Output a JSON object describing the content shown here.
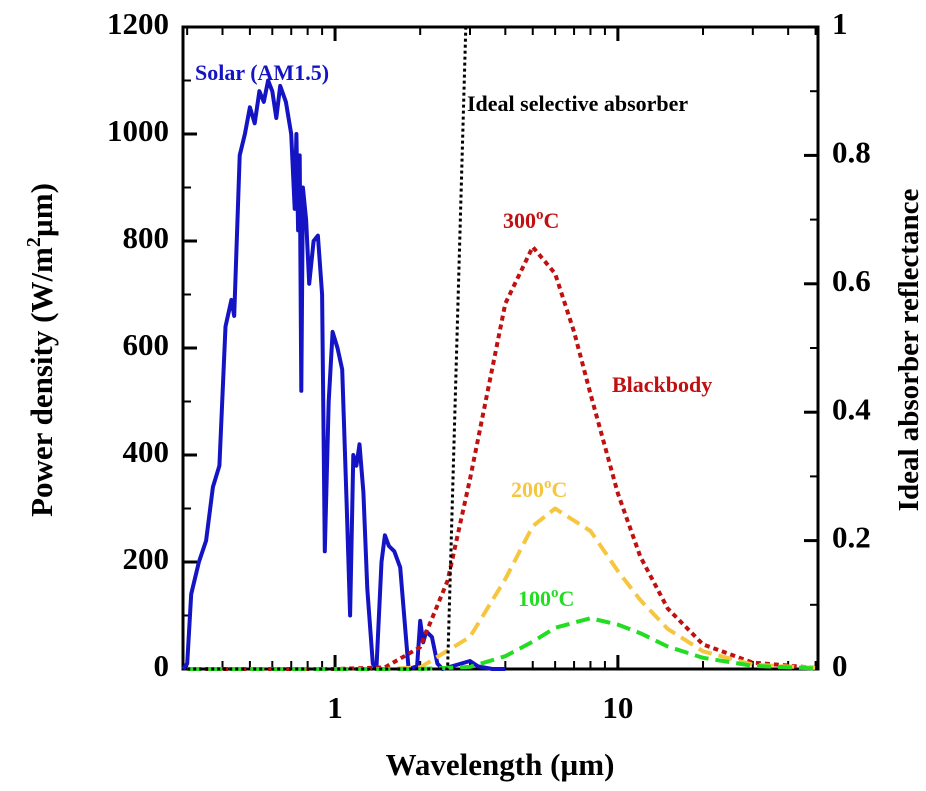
{
  "chart_data": {
    "type": "line",
    "xlabel": "Wavelength (µm)",
    "ylabel": [
      "Power density (W/m",
      "2",
      "µm)"
    ],
    "y2label": "Ideal absorber reflectance",
    "annotation": "Blackbody",
    "xscale": "log",
    "xlim": [
      0.29,
      51
    ],
    "xticks": [
      1,
      10
    ],
    "ylim": [
      0,
      1200
    ],
    "yticks": [
      0,
      200,
      400,
      600,
      800,
      1000,
      1200
    ],
    "y2lim": [
      0,
      1
    ],
    "y2ticks": [
      0,
      0.2,
      0.4,
      0.6,
      0.8,
      1
    ],
    "series": [
      {
        "name": [
          "Solar (AM1.5)"
        ],
        "color": "#1414c4",
        "dash": "solid",
        "x": [
          0.29,
          0.3,
          0.31,
          0.33,
          0.35,
          0.37,
          0.39,
          0.41,
          0.43,
          0.44,
          0.46,
          0.48,
          0.5,
          0.52,
          0.54,
          0.56,
          0.58,
          0.6,
          0.62,
          0.64,
          0.67,
          0.7,
          0.72,
          0.73,
          0.74,
          0.75,
          0.76,
          0.77,
          0.79,
          0.81,
          0.84,
          0.87,
          0.9,
          0.92,
          0.95,
          0.98,
          1.02,
          1.06,
          1.1,
          1.13,
          1.16,
          1.19,
          1.22,
          1.26,
          1.3,
          1.36,
          1.4,
          1.46,
          1.5,
          1.55,
          1.62,
          1.7,
          1.78,
          1.82,
          1.95,
          2.0,
          2.05,
          2.1,
          2.2,
          2.3,
          2.4,
          3.0,
          3.2,
          3.6,
          4.0
        ],
        "values": [
          0,
          10,
          140,
          200,
          240,
          340,
          380,
          640,
          690,
          660,
          960,
          1000,
          1050,
          1020,
          1080,
          1060,
          1100,
          1080,
          1030,
          1090,
          1060,
          1000,
          860,
          1000,
          820,
          960,
          520,
          900,
          840,
          720,
          800,
          810,
          700,
          220,
          500,
          630,
          600,
          560,
          300,
          100,
          400,
          380,
          420,
          330,
          150,
          10,
          0,
          200,
          250,
          230,
          220,
          190,
          60,
          0,
          5,
          90,
          50,
          70,
          60,
          10,
          0,
          15,
          5,
          0,
          0
        ]
      },
      {
        "name": [
          "300",
          "o",
          "C"
        ],
        "color": "#c01010",
        "dash": "dotted",
        "x": [
          0.3,
          1,
          1.5,
          2,
          2.5,
          3,
          4,
          5,
          6,
          7,
          8,
          10,
          12,
          15,
          20,
          30,
          50
        ],
        "values": [
          0,
          0,
          3,
          41,
          165,
          355,
          683,
          789,
          739,
          630,
          514,
          328,
          210,
          113,
          46,
          12,
          2
        ]
      },
      {
        "name": [
          "200",
          "o",
          "C"
        ],
        "color": "#f6c640",
        "dash": "dashed",
        "x": [
          0.3,
          1.5,
          2,
          3,
          4,
          5,
          6,
          8,
          10,
          12,
          15,
          20,
          30,
          50
        ],
        "values": [
          0,
          0,
          3,
          60,
          168,
          267,
          300,
          258,
          183,
          129,
          75,
          33,
          8,
          2
        ]
      },
      {
        "name": [
          "100",
          "o",
          "C"
        ],
        "color": "#22dd22",
        "dash": "dashed",
        "x": [
          0.3,
          2,
          3,
          4,
          5,
          6,
          8,
          10,
          12,
          15,
          20,
          30,
          50
        ],
        "values": [
          0,
          0,
          4,
          24,
          51,
          77,
          95,
          83,
          67,
          42,
          21,
          6,
          1
        ]
      },
      {
        "name": [
          "Ideal selective absorber"
        ],
        "color": "#000000",
        "dash": "fine",
        "axis": "y2",
        "x": [
          0.3,
          2.5,
          2.9,
          51
        ],
        "values": [
          0,
          0,
          1,
          1
        ]
      }
    ]
  }
}
